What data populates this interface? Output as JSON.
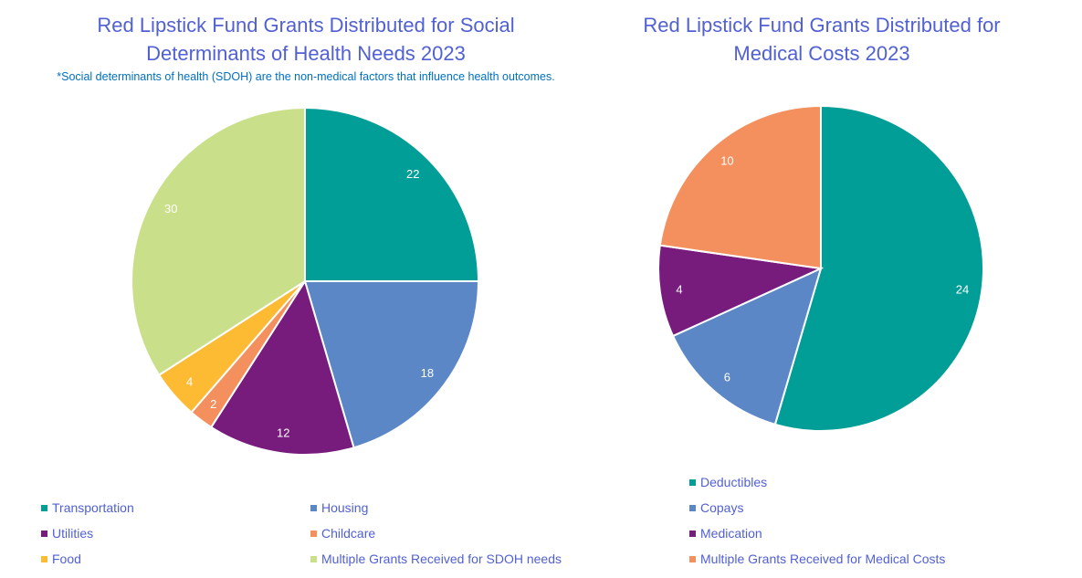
{
  "chart_data": [
    {
      "type": "pie",
      "title": "Red Lipstick Fund Grants Distributed for Social Determinants of Health Needs 2023",
      "subtitle": "*Social determinants of health (SDOH) are the non-medical factors that influence health outcomes.",
      "categories": [
        "Transportation",
        "Housing",
        "Utilities",
        "Childcare",
        "Food",
        "Multiple Grants Received for SDOH needs"
      ],
      "values": [
        22,
        18,
        12,
        2,
        4,
        30
      ],
      "colors": [
        "#009E96",
        "#5B87C6",
        "#771C7C",
        "#F4905E",
        "#FDBB33",
        "#C9DF8A"
      ],
      "label_colors": [
        "#fff",
        "#fff",
        "#fff",
        "#fff",
        "#fff",
        "#fff"
      ],
      "legend": "bottom"
    },
    {
      "type": "pie",
      "title": "Red Lipstick Fund Grants Distributed for Medical Costs 2023",
      "categories": [
        "Deductibles",
        "Copays",
        "Medication",
        "Multiple Grants Received for Medical Costs"
      ],
      "values": [
        24,
        6,
        4,
        10
      ],
      "colors": [
        "#009E96",
        "#5B87C6",
        "#771C7C",
        "#F4905E"
      ],
      "legend": "bottom"
    }
  ]
}
